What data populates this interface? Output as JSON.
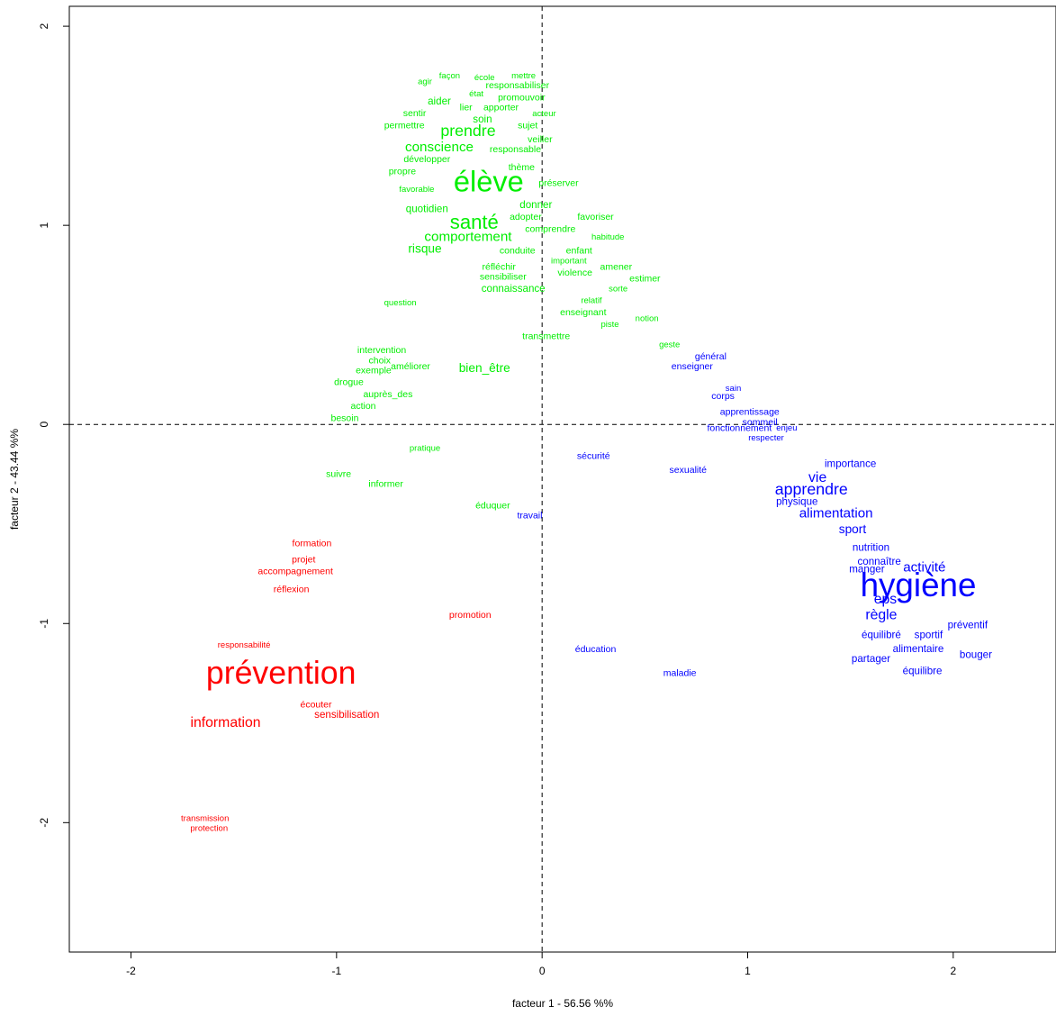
{
  "chart_data": {
    "type": "scatter",
    "title": "",
    "xlabel": "facteur  1 - 56.56 %%",
    "ylabel": "facteur  2 - 43.44 %%",
    "xlim": [
      -2.3,
      2.5
    ],
    "ylim": [
      -2.65,
      2.1
    ],
    "xticks": [
      {
        "v": -2,
        "label": "-2"
      },
      {
        "v": -1,
        "label": "-1"
      },
      {
        "v": 0,
        "label": "0"
      },
      {
        "v": 1,
        "label": "1"
      },
      {
        "v": 2,
        "label": "2"
      }
    ],
    "yticks": [
      {
        "v": -2,
        "label": "-2"
      },
      {
        "v": -1,
        "label": "-1"
      },
      {
        "v": 0,
        "label": "0"
      },
      {
        "v": 1,
        "label": "1"
      },
      {
        "v": 2,
        "label": "2"
      }
    ],
    "reference_lines": {
      "x": 0,
      "y": 0,
      "style": "dashed"
    },
    "groups": [
      {
        "color": "#00ee00",
        "points": [
          {
            "t": "agir",
            "x": -0.57,
            "y": 1.72,
            "s": 0.9
          },
          {
            "t": "façon",
            "x": -0.45,
            "y": 1.75,
            "s": 0.9
          },
          {
            "t": "école",
            "x": -0.28,
            "y": 1.74,
            "s": 0.9
          },
          {
            "t": "mettre",
            "x": -0.09,
            "y": 1.75,
            "s": 0.9
          },
          {
            "t": "responsabiliser",
            "x": -0.12,
            "y": 1.7,
            "s": 1
          },
          {
            "t": "état",
            "x": -0.32,
            "y": 1.66,
            "s": 0.9
          },
          {
            "t": "promouvoir",
            "x": -0.1,
            "y": 1.64,
            "s": 1
          },
          {
            "t": "aider",
            "x": -0.5,
            "y": 1.62,
            "s": 1.1
          },
          {
            "t": "lier",
            "x": -0.37,
            "y": 1.59,
            "s": 1
          },
          {
            "t": "apporter",
            "x": -0.2,
            "y": 1.59,
            "s": 1
          },
          {
            "t": "sentir",
            "x": -0.62,
            "y": 1.56,
            "s": 1
          },
          {
            "t": "acteur",
            "x": 0.01,
            "y": 1.56,
            "s": 0.9
          },
          {
            "t": "soin",
            "x": -0.29,
            "y": 1.53,
            "s": 1.1
          },
          {
            "t": "permettre",
            "x": -0.67,
            "y": 1.5,
            "s": 1
          },
          {
            "t": "sujet",
            "x": -0.07,
            "y": 1.5,
            "s": 1
          },
          {
            "t": "prendre",
            "x": -0.36,
            "y": 1.47,
            "s": 1.7
          },
          {
            "t": "veiller",
            "x": -0.01,
            "y": 1.43,
            "s": 1
          },
          {
            "t": "conscience",
            "x": -0.5,
            "y": 1.39,
            "s": 1.45
          },
          {
            "t": "responsable",
            "x": -0.13,
            "y": 1.38,
            "s": 1
          },
          {
            "t": "développer",
            "x": -0.56,
            "y": 1.33,
            "s": 1
          },
          {
            "t": "thème",
            "x": -0.1,
            "y": 1.29,
            "s": 1
          },
          {
            "t": "propre",
            "x": -0.68,
            "y": 1.27,
            "s": 1
          },
          {
            "t": "élève",
            "x": -0.26,
            "y": 1.21,
            "s": 3.1
          },
          {
            "t": "préserver",
            "x": 0.08,
            "y": 1.21,
            "s": 1
          },
          {
            "t": "favorable",
            "x": -0.61,
            "y": 1.18,
            "s": 0.9
          },
          {
            "t": "donner",
            "x": -0.03,
            "y": 1.1,
            "s": 1.1
          },
          {
            "t": "quotidien",
            "x": -0.56,
            "y": 1.08,
            "s": 1.1
          },
          {
            "t": "adopter",
            "x": -0.08,
            "y": 1.04,
            "s": 1
          },
          {
            "t": "favoriser",
            "x": 0.26,
            "y": 1.04,
            "s": 1
          },
          {
            "t": "santé",
            "x": -0.33,
            "y": 1.01,
            "s": 2.1
          },
          {
            "t": "comprendre",
            "x": 0.04,
            "y": 0.98,
            "s": 1
          },
          {
            "t": "comportement",
            "x": -0.36,
            "y": 0.94,
            "s": 1.45
          },
          {
            "t": "habitude",
            "x": 0.32,
            "y": 0.94,
            "s": 0.9
          },
          {
            "t": "risque",
            "x": -0.57,
            "y": 0.88,
            "s": 1.3
          },
          {
            "t": "conduite",
            "x": -0.12,
            "y": 0.87,
            "s": 1
          },
          {
            "t": "enfant",
            "x": 0.18,
            "y": 0.87,
            "s": 1
          },
          {
            "t": "important",
            "x": 0.13,
            "y": 0.82,
            "s": 0.9
          },
          {
            "t": "amener",
            "x": 0.36,
            "y": 0.79,
            "s": 1
          },
          {
            "t": "réfléchir",
            "x": -0.21,
            "y": 0.79,
            "s": 1
          },
          {
            "t": "violence",
            "x": 0.16,
            "y": 0.76,
            "s": 1
          },
          {
            "t": "sensibiliser",
            "x": -0.19,
            "y": 0.74,
            "s": 1
          },
          {
            "t": "estimer",
            "x": 0.5,
            "y": 0.73,
            "s": 1
          },
          {
            "t": "connaissance",
            "x": -0.14,
            "y": 0.68,
            "s": 1.1
          },
          {
            "t": "sorte",
            "x": 0.37,
            "y": 0.68,
            "s": 0.9
          },
          {
            "t": "relatif",
            "x": 0.24,
            "y": 0.62,
            "s": 0.9
          },
          {
            "t": "question",
            "x": -0.69,
            "y": 0.61,
            "s": 0.9
          },
          {
            "t": "enseignant",
            "x": 0.2,
            "y": 0.56,
            "s": 1
          },
          {
            "t": "notion",
            "x": 0.51,
            "y": 0.53,
            "s": 0.9
          },
          {
            "t": "piste",
            "x": 0.33,
            "y": 0.5,
            "s": 0.9
          },
          {
            "t": "transmettre",
            "x": 0.02,
            "y": 0.44,
            "s": 1
          },
          {
            "t": "geste",
            "x": 0.62,
            "y": 0.4,
            "s": 0.9
          },
          {
            "t": "intervention",
            "x": -0.78,
            "y": 0.37,
            "s": 1
          },
          {
            "t": "choix",
            "x": -0.79,
            "y": 0.32,
            "s": 1
          },
          {
            "t": "exemple",
            "x": -0.82,
            "y": 0.27,
            "s": 1
          },
          {
            "t": "améliorer",
            "x": -0.64,
            "y": 0.29,
            "s": 1
          },
          {
            "t": "bien_être",
            "x": -0.28,
            "y": 0.28,
            "s": 1.3
          },
          {
            "t": "drogue",
            "x": -0.94,
            "y": 0.21,
            "s": 1
          },
          {
            "t": "auprès_des",
            "x": -0.75,
            "y": 0.15,
            "s": 1
          },
          {
            "t": "action",
            "x": -0.87,
            "y": 0.09,
            "s": 1
          },
          {
            "t": "besoin",
            "x": -0.96,
            "y": 0.03,
            "s": 1
          },
          {
            "t": "pratique",
            "x": -0.57,
            "y": -0.12,
            "s": 0.9
          },
          {
            "t": "suivre",
            "x": -0.99,
            "y": -0.25,
            "s": 1
          },
          {
            "t": "informer",
            "x": -0.76,
            "y": -0.3,
            "s": 1
          },
          {
            "t": "éduquer",
            "x": -0.24,
            "y": -0.41,
            "s": 1
          }
        ]
      },
      {
        "color": "#0000ff",
        "points": [
          {
            "t": "général",
            "x": 0.82,
            "y": 0.34,
            "s": 1
          },
          {
            "t": "enseigner",
            "x": 0.73,
            "y": 0.29,
            "s": 1
          },
          {
            "t": "sain",
            "x": 0.93,
            "y": 0.18,
            "s": 0.9
          },
          {
            "t": "corps",
            "x": 0.88,
            "y": 0.14,
            "s": 1
          },
          {
            "t": "apprentissage",
            "x": 1.01,
            "y": 0.06,
            "s": 1
          },
          {
            "t": "sommeil",
            "x": 1.06,
            "y": 0.01,
            "s": 1
          },
          {
            "t": "fonctionnement",
            "x": 0.96,
            "y": -0.02,
            "s": 1
          },
          {
            "t": "enjeu",
            "x": 1.19,
            "y": -0.02,
            "s": 0.9
          },
          {
            "t": "respecter",
            "x": 1.09,
            "y": -0.07,
            "s": 0.9
          },
          {
            "t": "sécurité",
            "x": 0.25,
            "y": -0.16,
            "s": 1
          },
          {
            "t": "sexualité",
            "x": 0.71,
            "y": -0.23,
            "s": 1
          },
          {
            "t": "importance",
            "x": 1.5,
            "y": -0.2,
            "s": 1.1
          },
          {
            "t": "vie",
            "x": 1.34,
            "y": -0.27,
            "s": 1.5
          },
          {
            "t": "apprendre",
            "x": 1.31,
            "y": -0.33,
            "s": 1.7
          },
          {
            "t": "physique",
            "x": 1.24,
            "y": -0.39,
            "s": 1.1
          },
          {
            "t": "travail",
            "x": -0.06,
            "y": -0.46,
            "s": 1
          },
          {
            "t": "alimentation",
            "x": 1.43,
            "y": -0.45,
            "s": 1.45
          },
          {
            "t": "sport",
            "x": 1.51,
            "y": -0.53,
            "s": 1.3
          },
          {
            "t": "nutrition",
            "x": 1.6,
            "y": -0.62,
            "s": 1.1
          },
          {
            "t": "connaître",
            "x": 1.64,
            "y": -0.69,
            "s": 1.1
          },
          {
            "t": "manger",
            "x": 1.58,
            "y": -0.73,
            "s": 1.1
          },
          {
            "t": "activité",
            "x": 1.86,
            "y": -0.72,
            "s": 1.45
          },
          {
            "t": "hygiène",
            "x": 1.83,
            "y": -0.82,
            "s": 3.5
          },
          {
            "t": "eps",
            "x": 1.67,
            "y": -0.88,
            "s": 1.5
          },
          {
            "t": "règle",
            "x": 1.65,
            "y": -0.96,
            "s": 1.5
          },
          {
            "t": "préventif",
            "x": 2.07,
            "y": -1.01,
            "s": 1.1
          },
          {
            "t": "équilibré",
            "x": 1.65,
            "y": -1.06,
            "s": 1.1
          },
          {
            "t": "sportif",
            "x": 1.88,
            "y": -1.06,
            "s": 1.1
          },
          {
            "t": "alimentaire",
            "x": 1.83,
            "y": -1.13,
            "s": 1.1
          },
          {
            "t": "éducation",
            "x": 0.26,
            "y": -1.13,
            "s": 1
          },
          {
            "t": "bouger",
            "x": 2.11,
            "y": -1.16,
            "s": 1.1
          },
          {
            "t": "partager",
            "x": 1.6,
            "y": -1.18,
            "s": 1.1
          },
          {
            "t": "équilibre",
            "x": 1.85,
            "y": -1.24,
            "s": 1.1
          },
          {
            "t": "maladie",
            "x": 0.67,
            "y": -1.25,
            "s": 1
          }
        ]
      },
      {
        "color": "#ff0000",
        "points": [
          {
            "t": "formation",
            "x": -1.12,
            "y": -0.6,
            "s": 1
          },
          {
            "t": "projet",
            "x": -1.16,
            "y": -0.68,
            "s": 1
          },
          {
            "t": "accompagnement",
            "x": -1.2,
            "y": -0.74,
            "s": 1
          },
          {
            "t": "réflexion",
            "x": -1.22,
            "y": -0.83,
            "s": 1
          },
          {
            "t": "promotion",
            "x": -0.35,
            "y": -0.96,
            "s": 1
          },
          {
            "t": "responsabilité",
            "x": -1.45,
            "y": -1.11,
            "s": 0.9
          },
          {
            "t": "prévention",
            "x": -1.27,
            "y": -1.26,
            "s": 3.4
          },
          {
            "t": "écouter",
            "x": -1.1,
            "y": -1.41,
            "s": 1
          },
          {
            "t": "sensibilisation",
            "x": -0.95,
            "y": -1.46,
            "s": 1.1
          },
          {
            "t": "information",
            "x": -1.54,
            "y": -1.5,
            "s": 1.5
          },
          {
            "t": "transmission",
            "x": -1.64,
            "y": -1.98,
            "s": 0.9
          },
          {
            "t": "protection",
            "x": -1.62,
            "y": -2.03,
            "s": 0.9
          }
        ]
      }
    ]
  }
}
